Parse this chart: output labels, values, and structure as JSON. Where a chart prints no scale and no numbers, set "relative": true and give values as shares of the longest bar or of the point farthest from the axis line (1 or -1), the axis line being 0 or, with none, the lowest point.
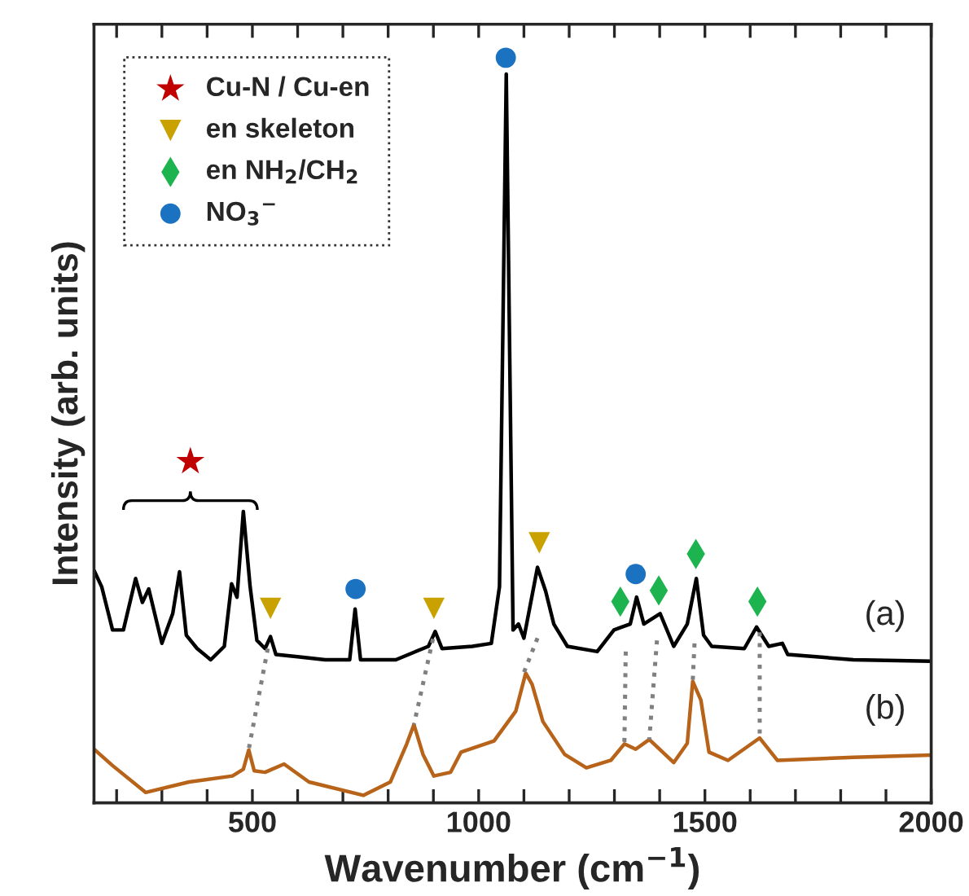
{
  "chart_data": {
    "type": "line",
    "relative": true,
    "xlabel": "Wavenumber (cm$^{−1}$)",
    "ylabel": "Intensity (arb. units)",
    "xlim": [
      150,
      2000
    ],
    "xticks": [
      {
        "value": 200,
        "label": null
      },
      {
        "value": 300,
        "label": null
      },
      {
        "value": 400,
        "label": null
      },
      500,
      {
        "value": 600,
        "label": null
      },
      {
        "value": 700,
        "label": null
      },
      {
        "value": 800,
        "label": null
      },
      {
        "value": 900,
        "label": null
      },
      1000,
      {
        "value": 1100,
        "label": null
      },
      {
        "value": 1200,
        "label": null
      },
      {
        "value": 1300,
        "label": null
      },
      {
        "value": 1400,
        "label": null
      },
      1500,
      {
        "value": 1600,
        "label": null
      },
      {
        "value": 1700,
        "label": null
      },
      {
        "value": 1800,
        "label": null
      },
      {
        "value": 1900,
        "label": null
      },
      2000
    ],
    "legend": "top left",
    "tick_labels": "x",
    "annotations": [
      "(a)",
      "(b)"
    ],
    "series": [
      {
        "color": "#000000",
        "marker": "none",
        "line_style": "solid",
        "x": [
          150,
          167,
          191,
          215,
          242,
          257,
          271,
          300,
          324,
          339,
          354,
          378,
          408,
          438,
          454,
          466,
          480,
          495,
          510,
          528,
          540,
          552,
          600,
          661,
          715,
          727,
          739,
          817,
          889,
          904,
          919,
          986,
          1028,
          1046,
          1061,
          1076,
          1088,
          1100,
          1130,
          1148,
          1166,
          1196,
          1262,
          1299,
          1335,
          1349,
          1365,
          1401,
          1431,
          1461,
          1481,
          1497,
          1515,
          1587,
          1614,
          1641,
          1671,
          1683,
          1828,
          2000
        ],
        "values": [
          0.312,
          0.29,
          0.232,
          0.232,
          0.301,
          0.269,
          0.287,
          0.214,
          0.254,
          0.31,
          0.225,
          0.207,
          0.192,
          0.21,
          0.294,
          0.276,
          0.391,
          0.29,
          0.218,
          0.207,
          0.223,
          0.199,
          0.196,
          0.192,
          0.192,
          0.26,
          0.192,
          0.192,
          0.21,
          0.23,
          0.207,
          0.21,
          0.214,
          0.29,
          0.978,
          0.232,
          0.24,
          0.221,
          0.316,
          0.284,
          0.24,
          0.21,
          0.203,
          0.232,
          0.24,
          0.276,
          0.24,
          0.254,
          0.21,
          0.24,
          0.301,
          0.225,
          0.21,
          0.207,
          0.236,
          0.21,
          0.214,
          0.199,
          0.192,
          0.19
        ]
      },
      {
        "color": "#b8631a",
        "marker": "none",
        "line_style": "solid",
        "x": [
          150,
          191,
          264,
          360,
          456,
          480,
          492,
          504,
          528,
          570,
          625,
          745,
          805,
          841,
          857,
          877,
          901,
          938,
          961,
          1034,
          1082,
          1104,
          1118,
          1142,
          1190,
          1238,
          1292,
          1322,
          1347,
          1377,
          1431,
          1461,
          1473,
          1491,
          1509,
          1551,
          1621,
          1660,
          1828,
          2000
        ],
        "values": [
          0.072,
          0.05,
          0.014,
          0.028,
          0.036,
          0.045,
          0.071,
          0.043,
          0.041,
          0.052,
          0.028,
          0.01,
          0.028,
          0.079,
          0.105,
          0.065,
          0.036,
          0.041,
          0.068,
          0.083,
          0.123,
          0.174,
          0.159,
          0.109,
          0.065,
          0.047,
          0.057,
          0.079,
          0.072,
          0.085,
          0.054,
          0.08,
          0.163,
          0.138,
          0.068,
          0.057,
          0.087,
          0.057,
          0.061,
          0.064
        ]
      },
      {
        "type": "line",
        "color": "#808080",
        "marker": "none",
        "line_style": "dotted",
        "x": [
          534,
          492
        ],
        "values": [
          0.207,
          0.072
        ]
      },
      {
        "type": "line",
        "color": "#808080",
        "marker": "none",
        "line_style": "dotted",
        "x": [
          899,
          857
        ],
        "values": [
          0.22,
          0.105
        ]
      },
      {
        "type": "line",
        "color": "#808080",
        "marker": "none",
        "line_style": "dotted",
        "x": [
          1130,
          1100
        ],
        "values": [
          0.221,
          0.175
        ]
      },
      {
        "type": "line",
        "color": "#808080",
        "marker": "none",
        "line_style": "dotted",
        "x": [
          1325,
          1322
        ],
        "values": [
          0.203,
          0.079
        ]
      },
      {
        "type": "line",
        "color": "#808080",
        "marker": "none",
        "line_style": "dotted",
        "x": [
          1394,
          1377
        ],
        "values": [
          0.218,
          0.085
        ]
      },
      {
        "type": "line",
        "color": "#808080",
        "marker": "none",
        "line_style": "dotted",
        "x": [
          1477,
          1473
        ],
        "values": [
          0.214,
          0.163
        ]
      },
      {
        "type": "line",
        "color": "#808080",
        "marker": "none",
        "line_style": "dotted",
        "x": [
          1621,
          1621
        ],
        "values": [
          0.229,
          0.09
        ]
      },
      {
        "type": "scatter",
        "name": "Cu-N / Cu-en",
        "color": "#c00000",
        "marker": "star",
        "x": [
          363
        ],
        "values": [
          0.458
        ]
      },
      {
        "type": "scatter",
        "name": "en skeleton",
        "color": "#c9a100",
        "marker": "triangle",
        "x": [
          540,
          901,
          1134
        ],
        "values": [
          0.261,
          0.261,
          0.349
        ]
      },
      {
        "type": "scatter",
        "name": "en NH$_{2}$/CH$_{2}$",
        "color": "#1db34f",
        "marker": "diamond",
        "x": [
          1313,
          1398,
          1480,
          1616
        ],
        "values": [
          0.27,
          0.285,
          0.334,
          0.27
        ]
      },
      {
        "type": "scatter",
        "name": "NO$_{3}$$^{−}$",
        "color": "#1a72c0",
        "marker": "circle",
        "x": [
          728,
          1060,
          1347
        ],
        "values": [
          0.287,
          1.0,
          0.307
        ]
      }
    ]
  }
}
